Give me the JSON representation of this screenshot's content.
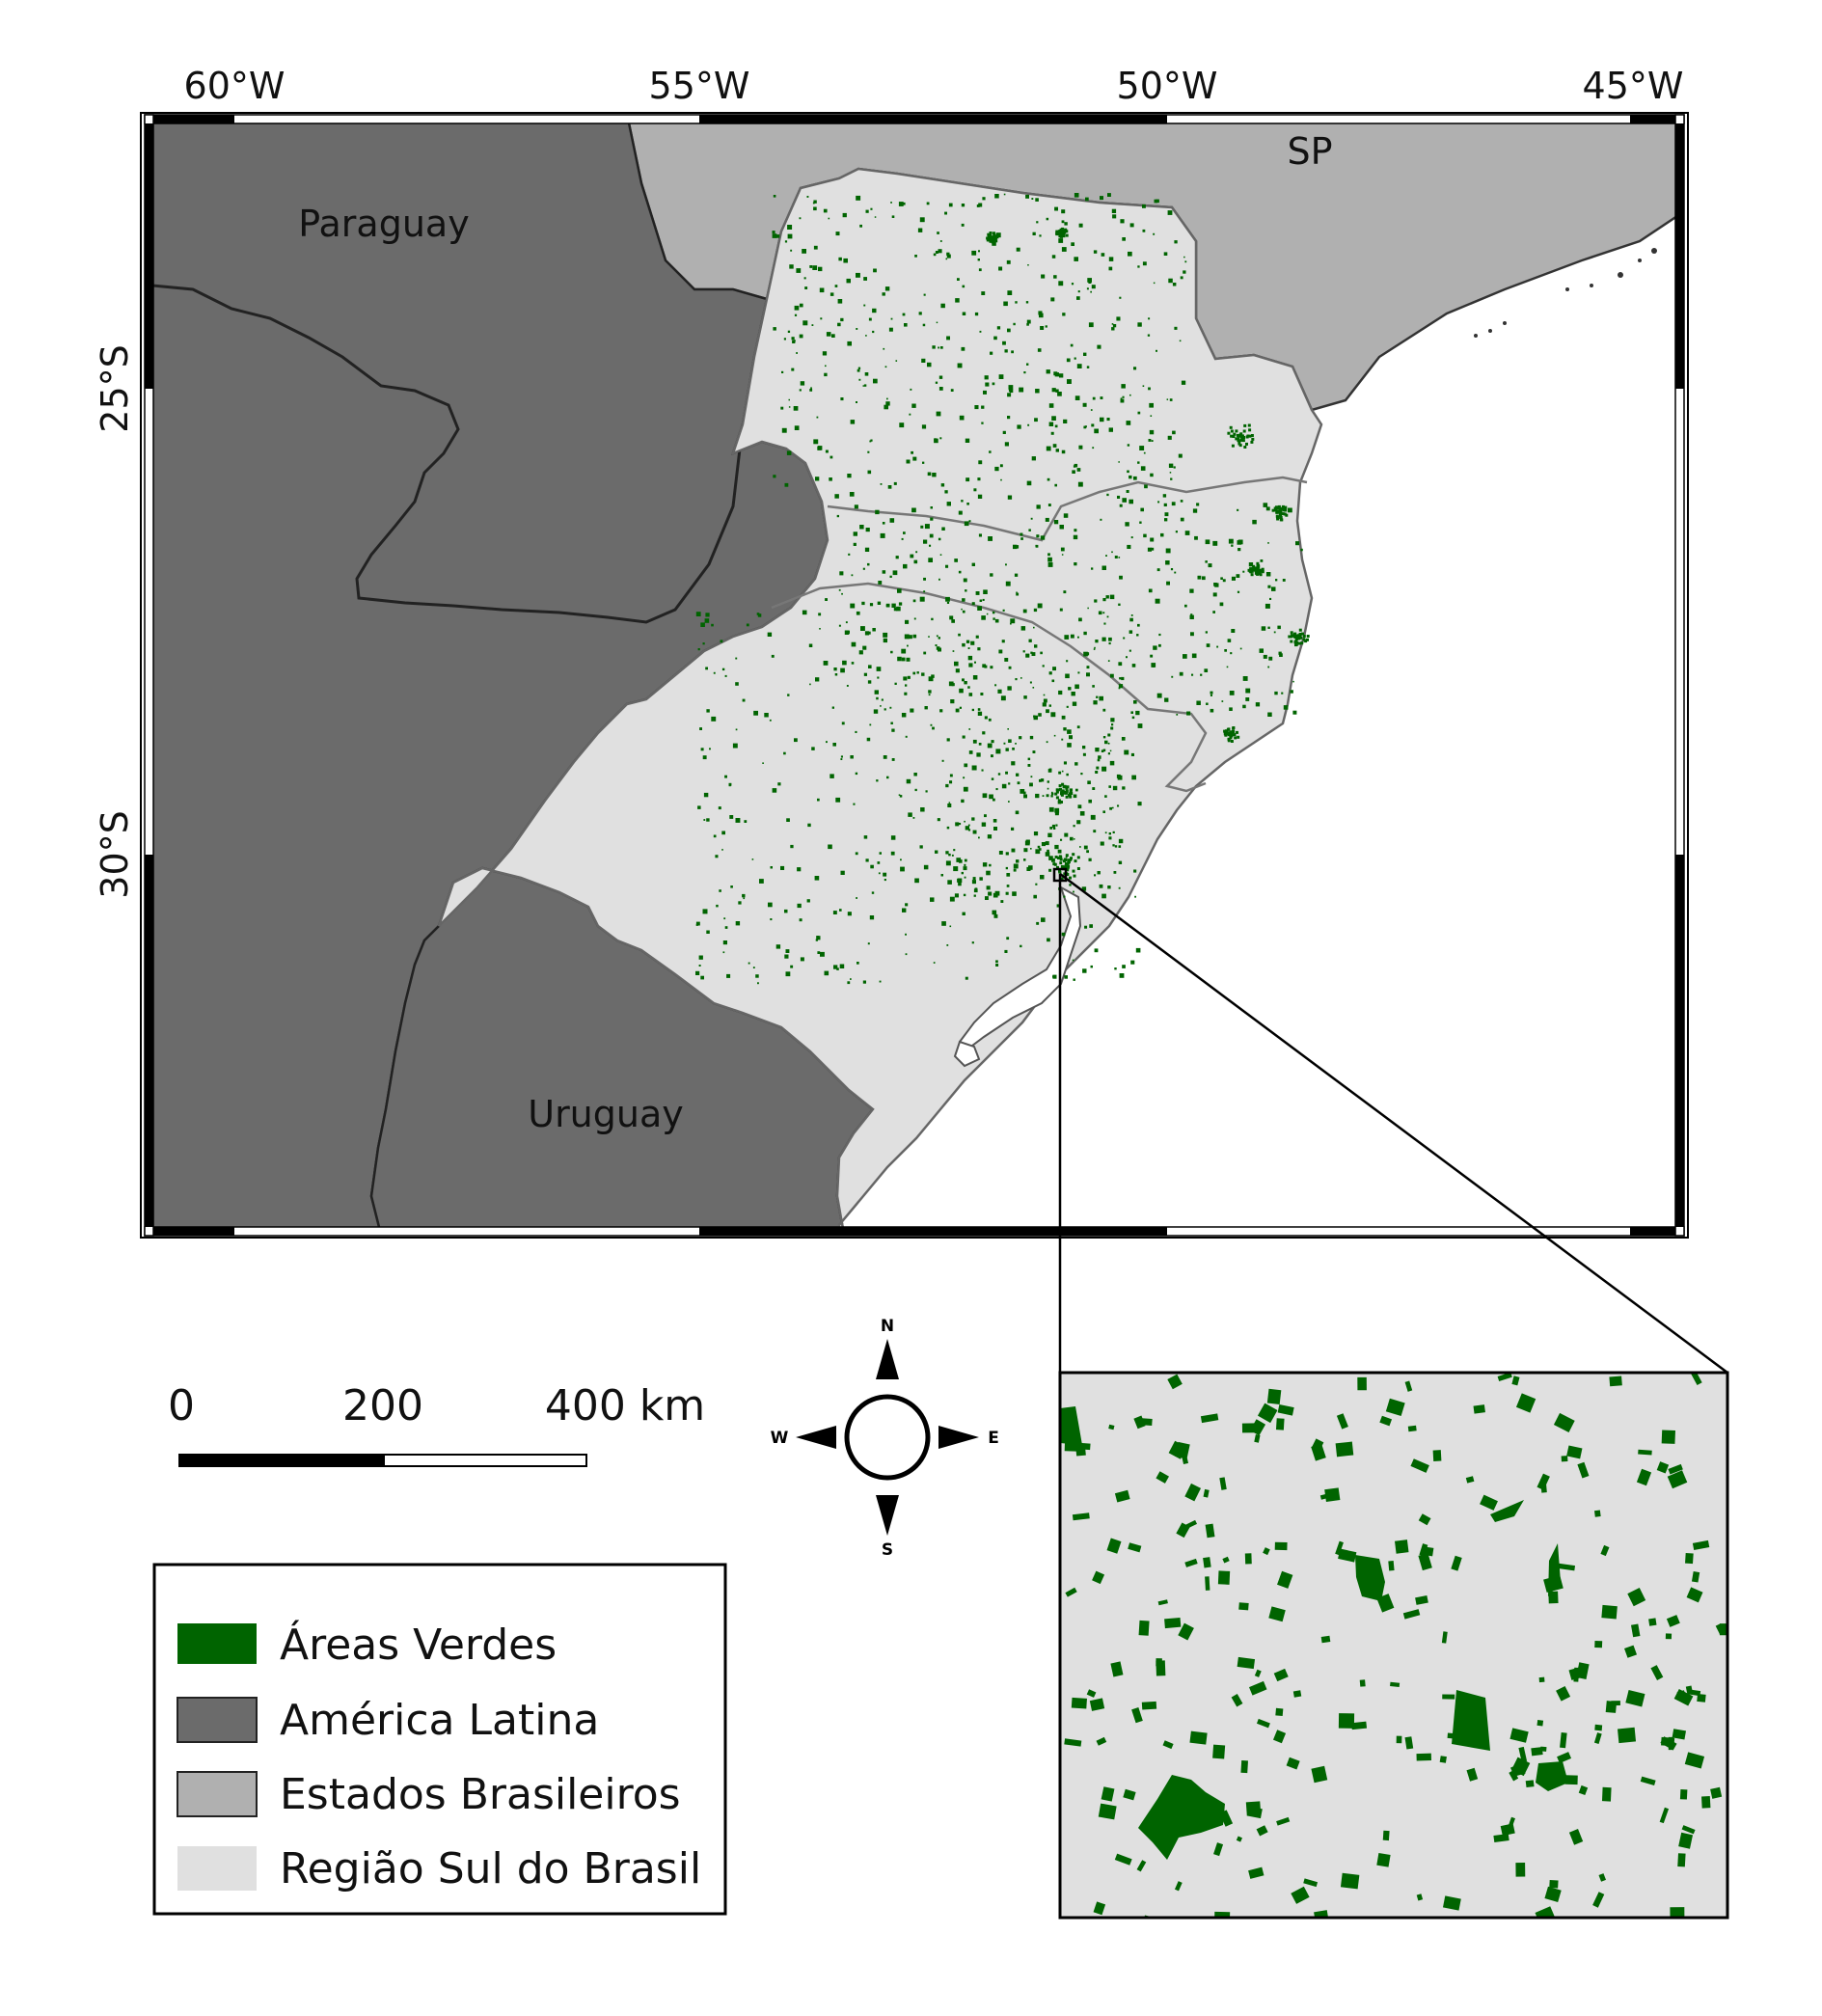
{
  "map": {
    "top_axis_labels": [
      "60°W",
      "55°W",
      "50°W",
      "45°W"
    ],
    "left_axis_labels": [
      "25°S",
      "30°S"
    ],
    "place_labels": {
      "paraguay": "Paraguay",
      "sp": "SP",
      "uruguay": "Uruguay"
    }
  },
  "scale_bar": {
    "ticks": [
      "0",
      "200",
      "400 km"
    ]
  },
  "north_arrow": {
    "n": "N",
    "s": "S",
    "e": "E",
    "w": "W"
  },
  "legend": {
    "items": [
      {
        "label": "Áreas Verdes",
        "color": "#006400"
      },
      {
        "label": "América Latina",
        "color": "#6b6b6b"
      },
      {
        "label": "Estados Brasileiros",
        "color": "#b0b0b0"
      },
      {
        "label": "Região Sul do Brasil",
        "color": "#e0e0e0"
      }
    ]
  },
  "colors": {
    "latin_america": "#6b6b6b",
    "brazilian_states": "#b0b0b0",
    "south_region": "#e0e0e0",
    "green_areas": "#006400",
    "ocean": "#ffffff"
  }
}
